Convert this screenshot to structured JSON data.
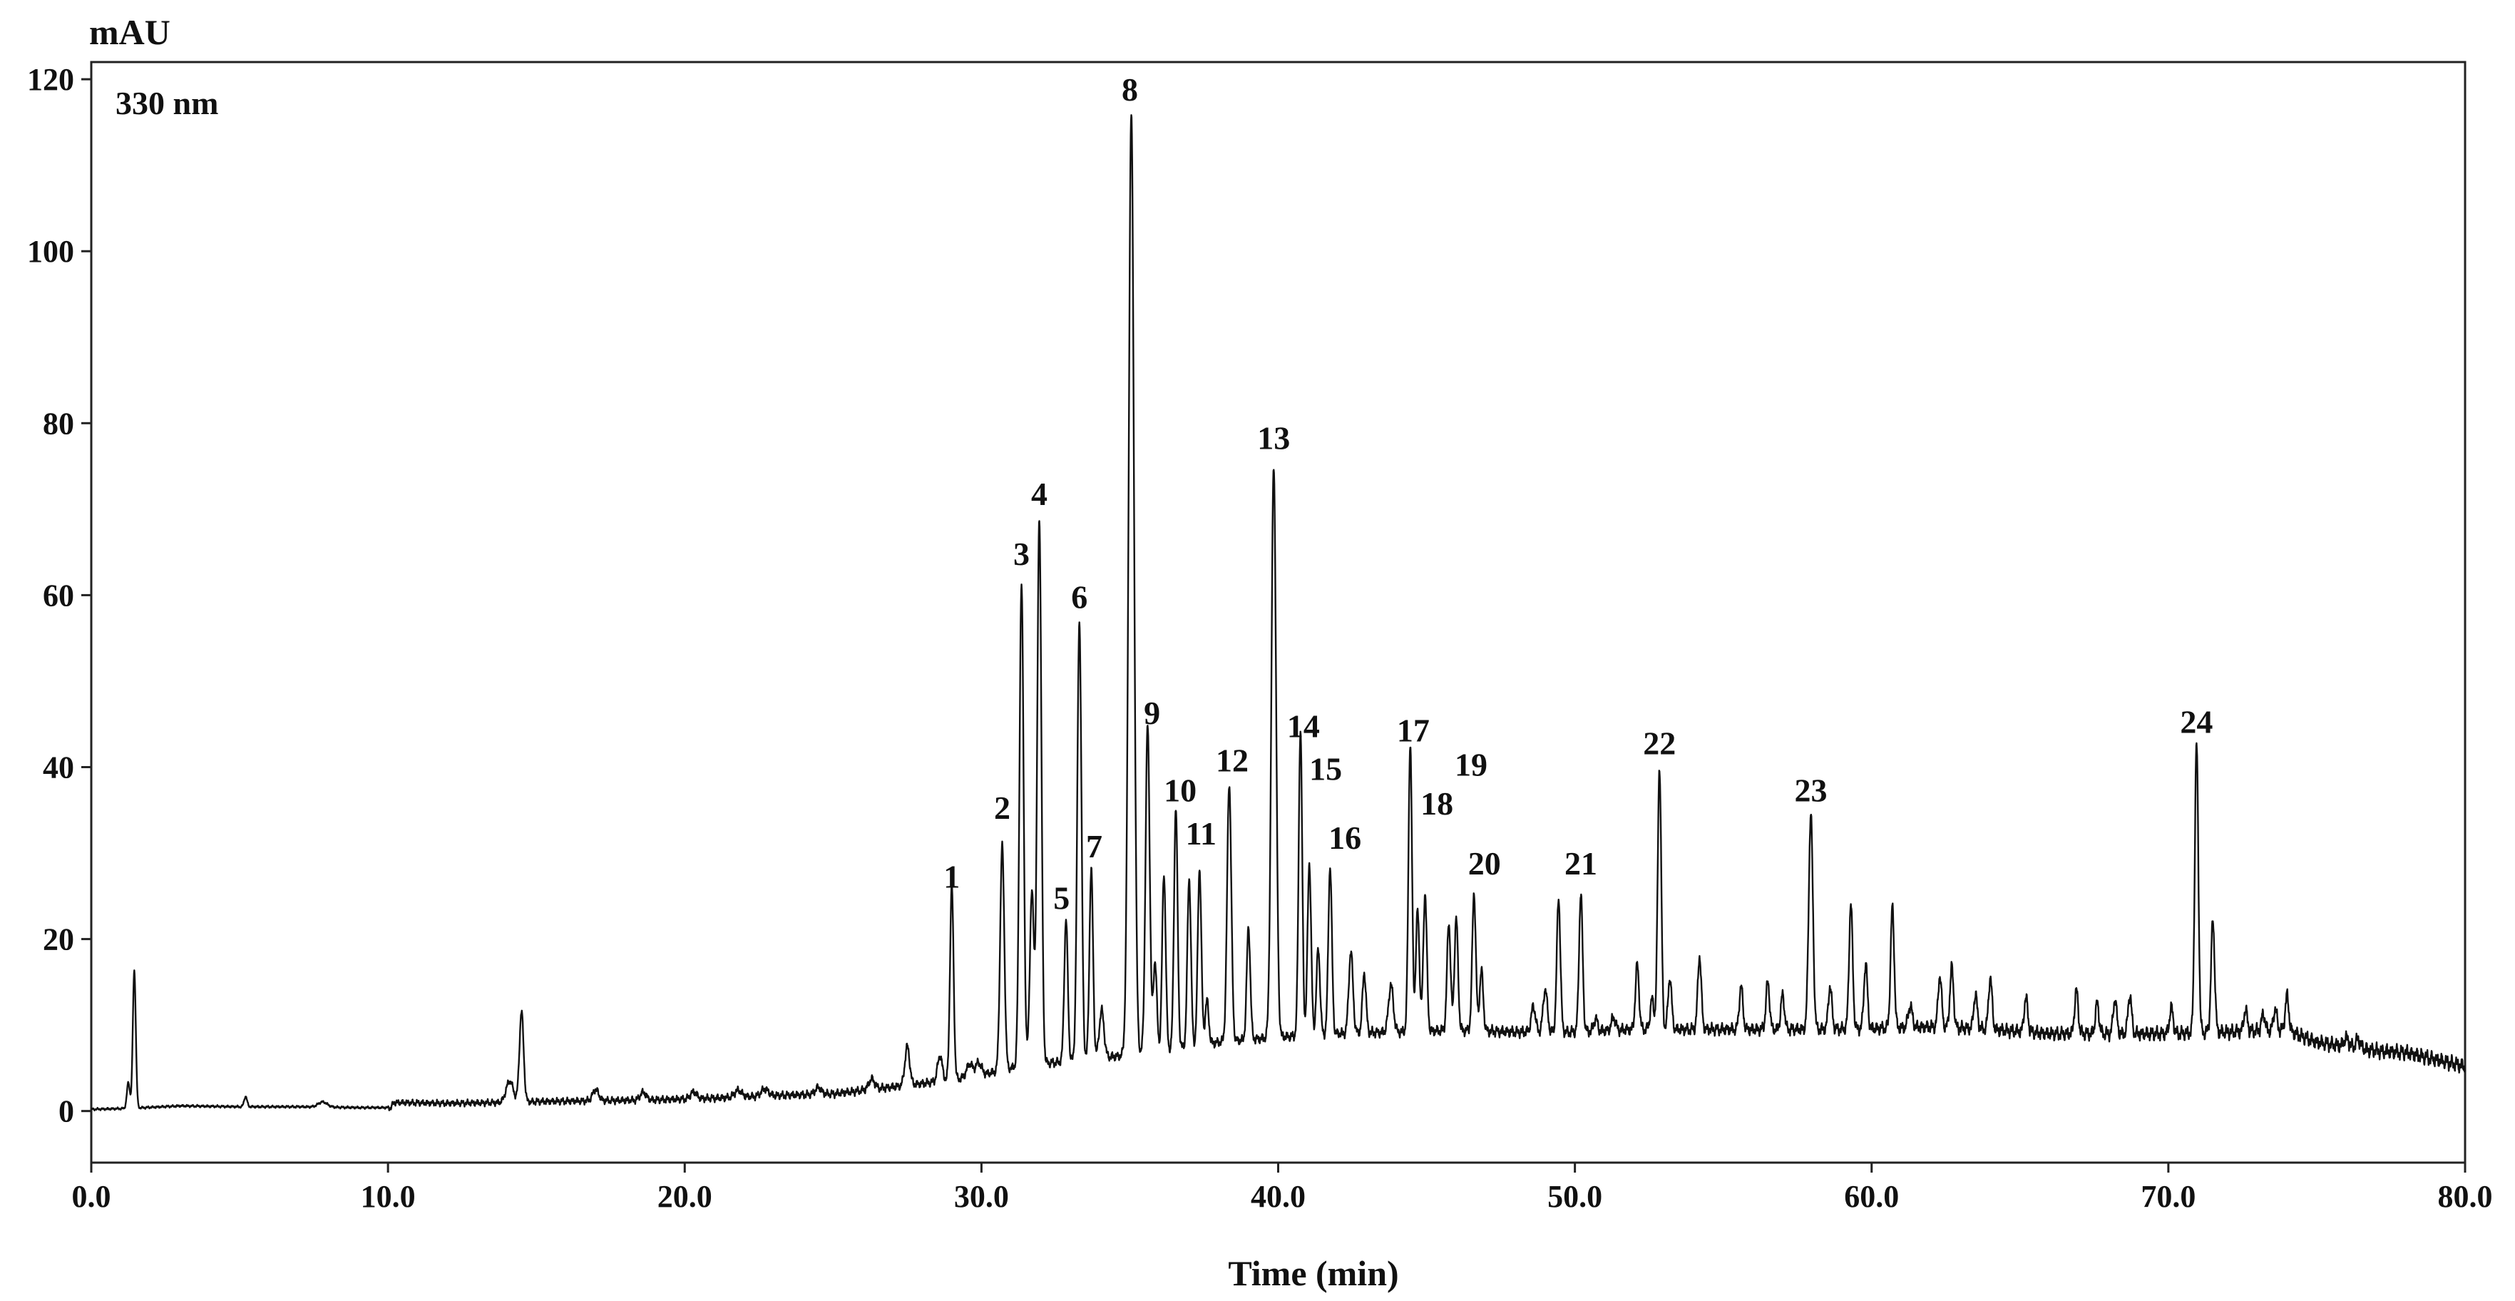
{
  "chart_data": {
    "type": "line",
    "title": "",
    "wavelength_label": "330 nm",
    "xlabel": "Time (min)",
    "ylabel": "mAU",
    "xlim": [
      0,
      80
    ],
    "ylim": [
      -6,
      122
    ],
    "x_ticks": [
      0,
      10,
      20,
      30,
      40,
      50,
      60,
      70,
      80
    ],
    "x_tick_labels": [
      "0.0",
      "10.0",
      "20.0",
      "30.0",
      "40.0",
      "50.0",
      "60.0",
      "70.0",
      "80.0"
    ],
    "y_ticks": [
      0,
      20,
      40,
      60,
      80,
      100,
      120
    ],
    "y_tick_labels": [
      "0",
      "20",
      "40",
      "60",
      "80",
      "100",
      "120"
    ],
    "grid": false,
    "baseline": [
      [
        0,
        0.2
      ],
      [
        1.2,
        0.3
      ],
      [
        3,
        0.6
      ],
      [
        5,
        0.5
      ],
      [
        7,
        0.5
      ],
      [
        9,
        0.4
      ],
      [
        10.1,
        0.4
      ],
      [
        10.2,
        1.0
      ],
      [
        12,
        0.9
      ],
      [
        14,
        1.0
      ],
      [
        15,
        1.1
      ],
      [
        17,
        1.2
      ],
      [
        19,
        1.3
      ],
      [
        21,
        1.5
      ],
      [
        23,
        1.8
      ],
      [
        25,
        2.0
      ],
      [
        26,
        2.4
      ],
      [
        27,
        2.8
      ],
      [
        28,
        3.2
      ],
      [
        29,
        3.6
      ],
      [
        30,
        4.2
      ],
      [
        31,
        5.0
      ],
      [
        32,
        5.5
      ],
      [
        33,
        5.8
      ],
      [
        34,
        6.2
      ],
      [
        35,
        6.5
      ],
      [
        36,
        7.0
      ],
      [
        37,
        7.5
      ],
      [
        38,
        8.0
      ],
      [
        39,
        8.3
      ],
      [
        40,
        8.6
      ],
      [
        42,
        9.0
      ],
      [
        44,
        9.2
      ],
      [
        46,
        9.4
      ],
      [
        48,
        9.2
      ],
      [
        50,
        9.2
      ],
      [
        52,
        9.5
      ],
      [
        54,
        9.5
      ],
      [
        56,
        9.5
      ],
      [
        58,
        9.5
      ],
      [
        60,
        9.6
      ],
      [
        62,
        9.8
      ],
      [
        64,
        9.5
      ],
      [
        66,
        9.0
      ],
      [
        68,
        9.0
      ],
      [
        70,
        9.0
      ],
      [
        72,
        9.2
      ],
      [
        74,
        9.4
      ],
      [
        75,
        8.0
      ],
      [
        77,
        7.0
      ],
      [
        78,
        6.8
      ],
      [
        80,
        5.2
      ]
    ],
    "peaks": [
      {
        "label": "",
        "t": 1.45,
        "h": 16.0,
        "w": 0.05
      },
      {
        "label": "",
        "t": 1.25,
        "h": 3.0,
        "w": 0.05
      },
      {
        "label": "",
        "t": 5.2,
        "h": 1.2,
        "w": 0.05
      },
      {
        "label": "",
        "t": 7.8,
        "h": 0.6,
        "w": 0.15
      },
      {
        "label": "",
        "t": 14.1,
        "h": 2.5,
        "w": 0.12
      },
      {
        "label": "",
        "t": 14.5,
        "h": 10.5,
        "w": 0.07
      },
      {
        "label": "",
        "t": 17.0,
        "h": 1.3,
        "w": 0.1
      },
      {
        "label": "",
        "t": 18.6,
        "h": 0.9,
        "w": 0.1
      },
      {
        "label": "",
        "t": 20.3,
        "h": 0.8,
        "w": 0.1
      },
      {
        "label": "",
        "t": 21.8,
        "h": 0.8,
        "w": 0.12
      },
      {
        "label": "",
        "t": 22.7,
        "h": 0.8,
        "w": 0.12
      },
      {
        "label": "",
        "t": 24.5,
        "h": 0.8,
        "w": 0.1
      },
      {
        "label": "",
        "t": 26.3,
        "h": 1.2,
        "w": 0.1
      },
      {
        "label": "",
        "t": 27.5,
        "h": 4.5,
        "w": 0.08
      },
      {
        "label": "",
        "t": 28.6,
        "h": 3.0,
        "w": 0.08
      },
      {
        "label": "1",
        "t": 29.0,
        "h": 22.5,
        "w": 0.06
      },
      {
        "label": "",
        "t": 29.6,
        "h": 1.5,
        "w": 0.1
      },
      {
        "label": "",
        "t": 29.9,
        "h": 1.5,
        "w": 0.1
      },
      {
        "label": "2",
        "t": 30.7,
        "h": 26.0,
        "w": 0.07
      },
      {
        "label": "3",
        "t": 31.35,
        "h": 56.0,
        "w": 0.07
      },
      {
        "label": "",
        "t": 31.7,
        "h": 20.0,
        "w": 0.07
      },
      {
        "label": "4",
        "t": 31.95,
        "h": 63.5,
        "w": 0.07
      },
      {
        "label": "5",
        "t": 32.85,
        "h": 16.5,
        "w": 0.06
      },
      {
        "label": "6",
        "t": 33.3,
        "h": 51.0,
        "w": 0.07
      },
      {
        "label": "7",
        "t": 33.7,
        "h": 22.0,
        "w": 0.06
      },
      {
        "label": "",
        "t": 34.05,
        "h": 5.5,
        "w": 0.08
      },
      {
        "label": "8",
        "t": 35.05,
        "h": 109.5,
        "w": 0.09
      },
      {
        "label": "9",
        "t": 35.6,
        "h": 38.0,
        "w": 0.07
      },
      {
        "label": "",
        "t": 35.85,
        "h": 10.5,
        "w": 0.06
      },
      {
        "label": "",
        "t": 36.15,
        "h": 20.5,
        "w": 0.06
      },
      {
        "label": "10",
        "t": 36.55,
        "h": 28.0,
        "w": 0.06
      },
      {
        "label": "",
        "t": 37.0,
        "h": 19.5,
        "w": 0.06
      },
      {
        "label": "11",
        "t": 37.35,
        "h": 20.5,
        "w": 0.06
      },
      {
        "label": "",
        "t": 37.6,
        "h": 5.0,
        "w": 0.06
      },
      {
        "label": "12",
        "t": 38.35,
        "h": 30.0,
        "w": 0.07
      },
      {
        "label": "",
        "t": 39.0,
        "h": 13.0,
        "w": 0.06
      },
      {
        "label": "13",
        "t": 39.85,
        "h": 66.5,
        "w": 0.08
      },
      {
        "label": "14",
        "t": 40.75,
        "h": 35.5,
        "w": 0.06
      },
      {
        "label": "15",
        "t": 41.05,
        "h": 20.0,
        "w": 0.06
      },
      {
        "label": "",
        "t": 41.35,
        "h": 10.0,
        "w": 0.06
      },
      {
        "label": "16",
        "t": 41.75,
        "h": 19.5,
        "w": 0.06
      },
      {
        "label": "",
        "t": 42.45,
        "h": 9.5,
        "w": 0.07
      },
      {
        "label": "",
        "t": 42.9,
        "h": 7.0,
        "w": 0.06
      },
      {
        "label": "",
        "t": 43.8,
        "h": 5.5,
        "w": 0.08
      },
      {
        "label": "17",
        "t": 44.45,
        "h": 33.5,
        "w": 0.06
      },
      {
        "label": "18",
        "t": 44.7,
        "h": 14.0,
        "w": 0.06
      },
      {
        "label": "",
        "t": 44.95,
        "h": 16.0,
        "w": 0.06
      },
      {
        "label": "19",
        "t": 45.75,
        "h": 12.5,
        "w": 0.06
      },
      {
        "label": "",
        "t": 46.0,
        "h": 13.0,
        "w": 0.06
      },
      {
        "label": "20",
        "t": 46.6,
        "h": 16.0,
        "w": 0.06
      },
      {
        "label": "",
        "t": 46.85,
        "h": 7.0,
        "w": 0.06
      },
      {
        "label": "",
        "t": 48.6,
        "h": 3.0,
        "w": 0.07
      },
      {
        "label": "",
        "t": 49.0,
        "h": 5.0,
        "w": 0.07
      },
      {
        "label": "21",
        "t": 49.45,
        "h": 15.5,
        "w": 0.06
      },
      {
        "label": "",
        "t": 50.2,
        "h": 16.0,
        "w": 0.06
      },
      {
        "label": "",
        "t": 50.7,
        "h": 1.5,
        "w": 0.06
      },
      {
        "label": "",
        "t": 51.3,
        "h": 1.5,
        "w": 0.07
      },
      {
        "label": "",
        "t": 52.1,
        "h": 7.5,
        "w": 0.06
      },
      {
        "label": "",
        "t": 52.6,
        "h": 3.5,
        "w": 0.06
      },
      {
        "label": "22",
        "t": 52.85,
        "h": 30.5,
        "w": 0.06
      },
      {
        "label": "",
        "t": 53.2,
        "h": 6.0,
        "w": 0.06
      },
      {
        "label": "",
        "t": 54.2,
        "h": 8.5,
        "w": 0.06
      },
      {
        "label": "",
        "t": 55.6,
        "h": 5.0,
        "w": 0.06
      },
      {
        "label": "",
        "t": 56.5,
        "h": 5.5,
        "w": 0.06
      },
      {
        "label": "",
        "t": 57.0,
        "h": 4.0,
        "w": 0.06
      },
      {
        "label": "23",
        "t": 57.95,
        "h": 25.0,
        "w": 0.07
      },
      {
        "label": "",
        "t": 58.6,
        "h": 5.0,
        "w": 0.06
      },
      {
        "label": "",
        "t": 59.3,
        "h": 14.5,
        "w": 0.06
      },
      {
        "label": "",
        "t": 59.8,
        "h": 7.5,
        "w": 0.06
      },
      {
        "label": "",
        "t": 60.7,
        "h": 14.0,
        "w": 0.06
      },
      {
        "label": "",
        "t": 61.3,
        "h": 2.5,
        "w": 0.07
      },
      {
        "label": "",
        "t": 62.3,
        "h": 6.0,
        "w": 0.06
      },
      {
        "label": "",
        "t": 62.7,
        "h": 7.0,
        "w": 0.06
      },
      {
        "label": "",
        "t": 63.5,
        "h": 4.0,
        "w": 0.06
      },
      {
        "label": "",
        "t": 64.0,
        "h": 6.0,
        "w": 0.06
      },
      {
        "label": "",
        "t": 65.2,
        "h": 4.0,
        "w": 0.06
      },
      {
        "label": "",
        "t": 66.9,
        "h": 5.0,
        "w": 0.06
      },
      {
        "label": "",
        "t": 67.6,
        "h": 3.5,
        "w": 0.06
      },
      {
        "label": "",
        "t": 68.2,
        "h": 4.0,
        "w": 0.06
      },
      {
        "label": "",
        "t": 68.7,
        "h": 4.5,
        "w": 0.06
      },
      {
        "label": "",
        "t": 70.1,
        "h": 3.0,
        "w": 0.06
      },
      {
        "label": "24",
        "t": 70.95,
        "h": 33.5,
        "w": 0.06
      },
      {
        "label": "",
        "t": 71.5,
        "h": 13.0,
        "w": 0.06
      },
      {
        "label": "",
        "t": 72.6,
        "h": 2.5,
        "w": 0.06
      },
      {
        "label": "",
        "t": 73.2,
        "h": 2.0,
        "w": 0.06
      },
      {
        "label": "",
        "t": 73.6,
        "h": 2.5,
        "w": 0.06
      },
      {
        "label": "",
        "t": 74.0,
        "h": 4.0,
        "w": 0.06
      },
      {
        "label": "",
        "t": 76.0,
        "h": 1.0,
        "w": 0.08
      },
      {
        "label": "",
        "t": 76.4,
        "h": 1.0,
        "w": 0.08
      }
    ],
    "peak_labels": [
      {
        "label": "1",
        "t": 29.0,
        "y": 26.0
      },
      {
        "label": "2",
        "t": 30.7,
        "y": 34.0
      },
      {
        "label": "3",
        "t": 31.35,
        "y": 63.5
      },
      {
        "label": "4",
        "t": 31.95,
        "y": 70.5
      },
      {
        "label": "5",
        "t": 32.7,
        "y": 23.5
      },
      {
        "label": "6",
        "t": 33.3,
        "y": 58.5
      },
      {
        "label": "7",
        "t": 33.8,
        "y": 29.5
      },
      {
        "label": "8",
        "t": 35.0,
        "y": 117.5
      },
      {
        "label": "9",
        "t": 35.75,
        "y": 45.0
      },
      {
        "label": "10",
        "t": 36.7,
        "y": 36.0
      },
      {
        "label": "11",
        "t": 37.4,
        "y": 31.0
      },
      {
        "label": "12",
        "t": 38.45,
        "y": 39.5
      },
      {
        "label": "13",
        "t": 39.85,
        "y": 77.0
      },
      {
        "label": "14",
        "t": 40.85,
        "y": 43.5
      },
      {
        "label": "15",
        "t": 41.6,
        "y": 38.5
      },
      {
        "label": "16",
        "t": 42.25,
        "y": 30.5
      },
      {
        "label": "17",
        "t": 44.55,
        "y": 43.0
      },
      {
        "label": "18",
        "t": 45.35,
        "y": 34.5
      },
      {
        "label": "19",
        "t": 46.5,
        "y": 39.0
      },
      {
        "label": "20",
        "t": 46.95,
        "y": 27.5
      },
      {
        "label": "21",
        "t": 50.2,
        "y": 27.5
      },
      {
        "label": "22",
        "t": 52.85,
        "y": 41.5
      },
      {
        "label": "23",
        "t": 57.95,
        "y": 36.0
      },
      {
        "label": "24",
        "t": 70.95,
        "y": 44.0
      }
    ]
  }
}
